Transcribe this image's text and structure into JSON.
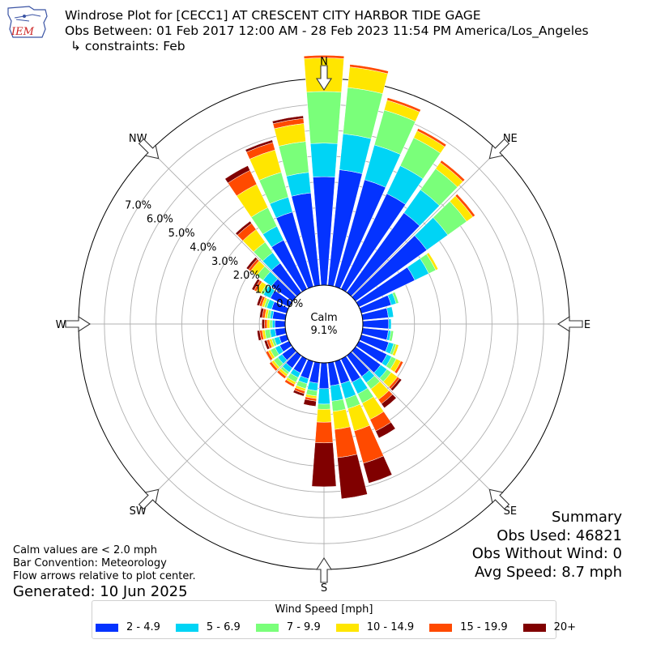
{
  "header": {
    "logo_text": "IEM",
    "title_line1": "Windrose Plot for [CECC1] AT CRESCENT CITY HARBOR TIDE GAGE",
    "title_line2": "Obs Between: 01 Feb 2017 12:00 AM - 28 Feb 2023 11:54 PM America/Los_Angeles",
    "title_line3": "↳ constraints: Feb"
  },
  "chart_data": {
    "type": "windrose",
    "radial_axis": {
      "unit": "%",
      "range": [
        0,
        8
      ],
      "tick_labels": [
        "0.0%",
        "1.0%",
        "2.0%",
        "3.0%",
        "4.0%",
        "5.0%",
        "6.0%",
        "7.0%"
      ]
    },
    "calm": {
      "label": "Calm",
      "value_text": "9.1%",
      "value": 9.1
    },
    "compass_labels": [
      "N",
      "NE",
      "E",
      "SE",
      "S",
      "SW",
      "W",
      "NW"
    ],
    "direction_bins_deg": [
      0,
      10,
      20,
      30,
      40,
      50,
      60,
      70,
      80,
      90,
      100,
      110,
      120,
      130,
      140,
      150,
      160,
      170,
      180,
      190,
      200,
      210,
      220,
      230,
      240,
      250,
      260,
      270,
      280,
      290,
      300,
      310,
      320,
      330,
      340,
      350
    ],
    "legend_title": "Wind Speed [mph]",
    "series": [
      {
        "name": "2 - 4.9",
        "color": "#0433ff",
        "values": [
          4.2,
          4.5,
          4.3,
          4.1,
          3.8,
          3.4,
          2.4,
          1.2,
          1.0,
          1.0,
          1.0,
          1.1,
          1.2,
          1.2,
          1.0,
          1.0,
          0.9,
          0.9,
          1.0,
          0.8,
          0.7,
          0.6,
          0.6,
          0.5,
          0.4,
          0.3,
          0.4,
          0.4,
          0.5,
          0.6,
          0.8,
          1.0,
          1.4,
          2.1,
          3.0,
          3.6
        ]
      },
      {
        "name": "5 - 6.9",
        "color": "#00d4f5",
        "values": [
          1.3,
          1.4,
          1.4,
          1.2,
          1.1,
          1.0,
          0.6,
          0.2,
          0.2,
          0.1,
          0.1,
          0.2,
          0.2,
          0.3,
          0.3,
          0.5,
          0.6,
          0.6,
          0.6,
          0.3,
          0.2,
          0.2,
          0.2,
          0.2,
          0.2,
          0.2,
          0.2,
          0.1,
          0.1,
          0.2,
          0.3,
          0.4,
          0.5,
          0.6,
          0.6,
          0.8
        ]
      },
      {
        "name": "7 - 9.9",
        "color": "#7aff7a",
        "values": [
          2.0,
          1.8,
          1.4,
          1.2,
          1.0,
          0.9,
          0.3,
          0.1,
          0.0,
          0.0,
          0.1,
          0.1,
          0.2,
          0.2,
          0.3,
          0.4,
          0.4,
          0.4,
          0.2,
          0.2,
          0.2,
          0.2,
          0.1,
          0.2,
          0.2,
          0.1,
          0.2,
          0.1,
          0.1,
          0.1,
          0.1,
          0.3,
          0.5,
          0.8,
          1.0,
          1.2
        ]
      },
      {
        "name": "10 - 14.9",
        "color": "#ffe600",
        "values": [
          1.3,
          0.8,
          0.4,
          0.3,
          0.3,
          0.3,
          0.1,
          0.0,
          0.0,
          0.0,
          0.0,
          0.1,
          0.2,
          0.3,
          0.5,
          0.7,
          0.9,
          0.7,
          0.5,
          0.1,
          0.1,
          0.1,
          0.1,
          0.1,
          0.1,
          0.1,
          0.1,
          0.1,
          0.1,
          0.1,
          0.2,
          0.3,
          0.6,
          1.0,
          0.9,
          0.7
        ]
      },
      {
        "name": "15 - 19.9",
        "color": "#ff4a00",
        "values": [
          0.1,
          0.1,
          0.1,
          0.1,
          0.1,
          0.1,
          0.0,
          0.0,
          0.0,
          0.0,
          0.0,
          0.0,
          0.1,
          0.1,
          0.2,
          0.5,
          1.3,
          1.1,
          0.8,
          0.1,
          0.1,
          0.1,
          0.1,
          0.1,
          0.1,
          0.1,
          0.1,
          0.1,
          0.1,
          0.1,
          0.1,
          0.1,
          0.3,
          0.6,
          0.3,
          0.2
        ]
      },
      {
        "name": "20+",
        "color": "#800000",
        "values": [
          0.0,
          0.0,
          0.0,
          0.0,
          0.0,
          0.0,
          0.0,
          0.0,
          0.0,
          0.0,
          0.0,
          0.0,
          0.0,
          0.1,
          0.2,
          0.3,
          0.8,
          1.6,
          1.7,
          0.2,
          0.1,
          0.0,
          0.0,
          0.0,
          0.0,
          0.1,
          0.1,
          0.1,
          0.1,
          0.1,
          0.1,
          0.1,
          0.1,
          0.2,
          0.1,
          0.1
        ]
      }
    ]
  },
  "summary": {
    "title": "Summary",
    "obs_used": "Obs Used: 46821",
    "obs_without_wind": "Obs Without Wind: 0",
    "avg_speed": "Avg Speed: 8.7 mph"
  },
  "notes": {
    "line1": "Calm values are < 2.0 mph",
    "line2": "Bar Convention: Meteorology",
    "line3": "Flow arrows relative to plot center.",
    "generated": "Generated: 10 Jun 2025"
  }
}
